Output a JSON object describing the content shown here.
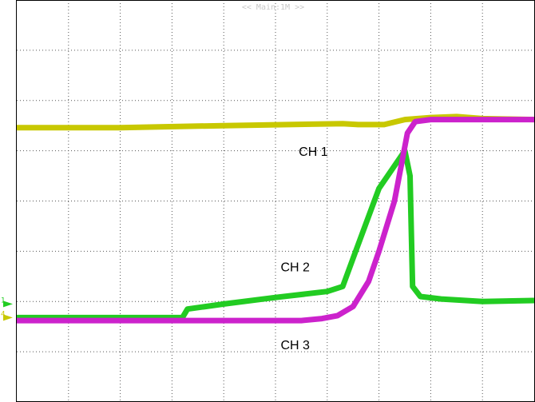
{
  "header": {
    "timebase_label": "<< Main:1M >>"
  },
  "chart_data": {
    "type": "line",
    "xlim": [
      0,
      10
    ],
    "ylim": [
      0,
      8
    ],
    "grid": true,
    "grid_divisions": {
      "x": 10,
      "y": 8
    },
    "colors": {
      "background": "#ffffff",
      "grid": "#555555",
      "ch1": "#c8c800",
      "ch2": "#22cc22",
      "ch3": "#cc22cc"
    },
    "series": [
      {
        "name": "CH 1",
        "color": "#c8c800",
        "x": [
          0.0,
          2.0,
          4.0,
          6.3,
          6.6,
          7.1,
          7.5,
          8.0,
          8.5,
          9.0,
          9.5,
          10.0
        ],
        "y": [
          5.46,
          5.46,
          5.5,
          5.54,
          5.52,
          5.52,
          5.62,
          5.66,
          5.68,
          5.64,
          5.63,
          5.62
        ]
      },
      {
        "name": "CH 2",
        "color": "#22cc22",
        "x": [
          0.0,
          3.2,
          3.3,
          4.0,
          5.0,
          6.0,
          6.3,
          6.55,
          7.0,
          7.5,
          7.6,
          7.65,
          7.8,
          8.2,
          9.0,
          10.0
        ],
        "y": [
          1.68,
          1.68,
          1.85,
          1.95,
          2.08,
          2.2,
          2.3,
          3.0,
          4.25,
          5.0,
          4.5,
          2.3,
          2.1,
          2.05,
          2.0,
          2.02
        ]
      },
      {
        "name": "CH 3",
        "color": "#cc22cc",
        "x": [
          0.0,
          3.2,
          5.5,
          5.9,
          6.2,
          6.5,
          6.8,
          7.0,
          7.3,
          7.55,
          7.7,
          8.0,
          9.0,
          10.0
        ],
        "y": [
          1.62,
          1.62,
          1.62,
          1.66,
          1.72,
          1.9,
          2.4,
          3.0,
          4.0,
          5.35,
          5.58,
          5.62,
          5.62,
          5.62
        ]
      }
    ],
    "annotations": [
      {
        "text": "CH 1",
        "x": 5.45,
        "y": 4.9
      },
      {
        "text": "CH 2",
        "x": 5.1,
        "y": 2.6
      },
      {
        "text": "CH 3",
        "x": 5.1,
        "y": 1.05
      }
    ],
    "ground_markers": [
      {
        "text": "1",
        "color": "#22cc22",
        "level": 1.95
      },
      {
        "text": "4",
        "color": "#c8c800",
        "level": 1.68
      }
    ]
  }
}
